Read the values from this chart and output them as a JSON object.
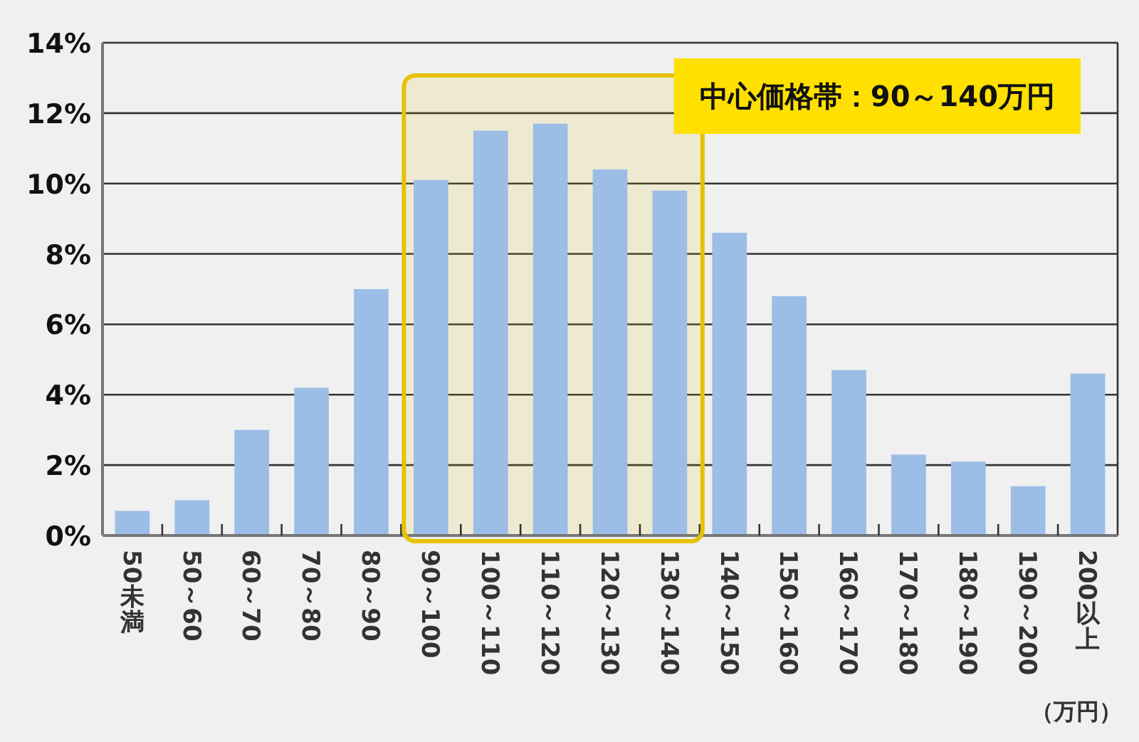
{
  "chart_data": {
    "type": "bar",
    "categories": [
      "50未満",
      "50～60",
      "60～70",
      "70～80",
      "80～90",
      "90～100",
      "100～110",
      "110～120",
      "120～130",
      "130～140",
      "140～150",
      "150～160",
      "160～170",
      "170～180",
      "180～190",
      "190～200",
      "200以上"
    ],
    "values": [
      0.7,
      1.0,
      3.0,
      4.2,
      7.0,
      10.1,
      11.5,
      11.7,
      10.4,
      9.8,
      8.6,
      6.8,
      4.7,
      2.3,
      2.1,
      1.4,
      4.6
    ],
    "color": "#9bbde6",
    "xlabel": "（万円）",
    "ylim": [
      0,
      14
    ],
    "yticks": [
      {
        "value": 0,
        "label": "0%"
      },
      {
        "value": 2,
        "label": "2%"
      },
      {
        "value": 4,
        "label": "4%"
      },
      {
        "value": 6,
        "label": "6%"
      },
      {
        "value": 8,
        "label": "8%"
      },
      {
        "value": 10,
        "label": "10%"
      },
      {
        "value": 12,
        "label": "12%"
      },
      {
        "value": 14,
        "label": "14%"
      }
    ],
    "grid": "y",
    "bands": [
      {
        "axis": "x",
        "from": "90～100",
        "to": "130～140",
        "label": "中心価格帯：90～140万円",
        "color": "#e6c200"
      }
    ]
  }
}
